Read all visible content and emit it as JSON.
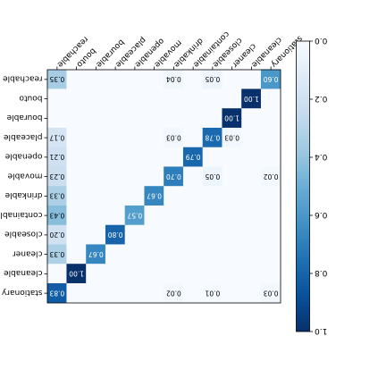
{
  "chart_data": {
    "type": "heatmap",
    "orientation": "rotated 180 degrees",
    "title": "",
    "xlabel": "",
    "ylabel": "",
    "labels": [
      "reachable",
      "bouto",
      "bourable",
      "placeable",
      "openable",
      "movable",
      "drinkable",
      "containable",
      "closeable",
      "cleaner",
      "cleanable",
      "stationary"
    ],
    "matrix": [
      [
        0.35,
        0,
        0,
        0,
        0,
        0,
        0.04,
        0,
        0.05,
        0,
        0,
        0.6
      ],
      [
        0,
        0,
        0,
        0,
        0,
        0,
        0,
        0,
        0,
        0,
        1.0,
        0
      ],
      [
        0,
        0,
        0,
        0,
        0,
        0,
        0,
        0,
        0,
        1.0,
        0,
        0
      ],
      [
        0.17,
        0,
        0,
        0,
        0,
        0,
        0.03,
        0,
        0.78,
        0.03,
        0,
        0
      ],
      [
        0.21,
        0,
        0,
        0,
        0,
        0,
        0,
        0.79,
        0,
        0,
        0,
        0
      ],
      [
        0.23,
        0,
        0,
        0,
        0,
        0,
        0.7,
        0,
        0.05,
        0,
        0,
        0.02
      ],
      [
        0.33,
        0,
        0,
        0,
        0,
        0.67,
        0,
        0,
        0,
        0,
        0,
        0
      ],
      [
        0.43,
        0,
        0,
        0,
        0.57,
        0,
        0,
        0,
        0,
        0,
        0,
        0
      ],
      [
        0.2,
        0,
        0,
        0.8,
        0,
        0,
        0,
        0,
        0,
        0,
        0,
        0
      ],
      [
        0.33,
        0,
        0.67,
        0,
        0,
        0,
        0,
        0,
        0,
        0,
        0,
        0
      ],
      [
        0,
        1.0,
        0,
        0,
        0,
        0,
        0,
        0,
        0,
        0,
        0,
        0
      ],
      [
        0.83,
        0,
        0,
        0,
        0,
        0,
        0.02,
        0,
        0.01,
        0,
        0,
        0.03
      ]
    ],
    "cell_labels": [
      [
        "0.35",
        "",
        "",
        "",
        "",
        "",
        "0.04",
        "",
        "0.05",
        "",
        "",
        "0.60"
      ],
      [
        "",
        "",
        "",
        "",
        "",
        "",
        "",
        "",
        "",
        "",
        "1.00",
        ""
      ],
      [
        "",
        "",
        "",
        "",
        "",
        "",
        "",
        "",
        "",
        "1.00",
        "",
        ""
      ],
      [
        "0.17",
        "",
        "",
        "",
        "",
        "",
        "0.03",
        "",
        "0.78",
        "0.03",
        "",
        ""
      ],
      [
        "0.21",
        "",
        "",
        "",
        "",
        "",
        "",
        "0.79",
        "",
        "",
        "",
        ""
      ],
      [
        "0.23",
        "",
        "",
        "",
        "",
        "",
        "0.70",
        "",
        "0.05",
        "",
        "",
        "0.02"
      ],
      [
        "0.33",
        "",
        "",
        "",
        "",
        "0.67",
        "",
        "",
        "",
        "",
        "",
        ""
      ],
      [
        "0.43",
        "",
        "",
        "",
        "0.57",
        "",
        "",
        "",
        "",
        "",
        "",
        ""
      ],
      [
        "0.20",
        "",
        "",
        "0.80",
        "",
        "",
        "",
        "",
        "",
        "",
        "",
        ""
      ],
      [
        "0.33",
        "",
        "0.67",
        "",
        "",
        "",
        "",
        "",
        "",
        "",
        "",
        ""
      ],
      [
        "",
        "1.00",
        "",
        "",
        "",
        "",
        "",
        "",
        "",
        "",
        "",
        ""
      ],
      [
        "0.83",
        "",
        "",
        "",
        "",
        "",
        "0.02",
        "",
        "0.01",
        "",
        "",
        "0.03"
      ]
    ],
    "colorbar": {
      "ticks": [
        "0.0",
        "0.2",
        "0.4",
        "0.6",
        "0.8",
        "1.0"
      ],
      "min": 0,
      "max": 1,
      "colormap": [
        "#f7fbff",
        "#deebf7",
        "#c6dbef",
        "#9ecae1",
        "#6baed6",
        "#4292c6",
        "#2171b5",
        "#08519c",
        "#08306b"
      ]
    }
  }
}
